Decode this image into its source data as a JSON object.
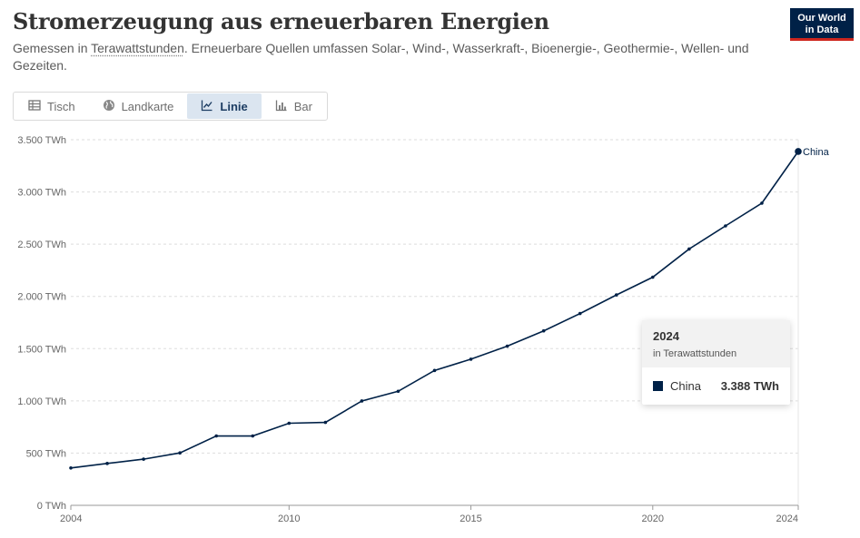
{
  "header": {
    "title": "Stromerzeugung aus erneuerbaren Energien",
    "subtitle_prefix": "Gemessen in ",
    "subtitle_link": "Terawattstunden",
    "subtitle_rest": ". Erneuerbare Quellen umfassen Solar-, Wind-, Wasserkraft-, Bioenergie-, Geothermie-, Wellen- und Gezeiten."
  },
  "logo": {
    "line1": "Our World",
    "line2": "in Data"
  },
  "tabs": [
    {
      "label": "Tisch",
      "icon": "table-icon",
      "active": false
    },
    {
      "label": "Landkarte",
      "icon": "globe-icon",
      "active": false
    },
    {
      "label": "Linie",
      "icon": "line-chart-icon",
      "active": true
    },
    {
      "label": "Bar",
      "icon": "bar-chart-icon",
      "active": false
    }
  ],
  "tooltip": {
    "year": "2024",
    "unit": "in Terawattstunden",
    "series": "China",
    "value": "3.388 TWh"
  },
  "colors": {
    "series": "#002147",
    "accent": "#ce261e",
    "active_tab": "#dbe5f0"
  },
  "chart_data": {
    "type": "line",
    "title": "Stromerzeugung aus erneuerbaren Energien",
    "xlim": [
      2004,
      2024
    ],
    "ylim": [
      0,
      3500
    ],
    "x_ticks": [
      2004,
      2010,
      2015,
      2020,
      2024
    ],
    "y_ticks": [
      0,
      500,
      1000,
      1500,
      2000,
      2500,
      3000,
      3500
    ],
    "y_tick_labels": [
      "0 TWh",
      "500 TWh",
      "1.000 TWh",
      "1.500 TWh",
      "2.000 TWh",
      "2.500 TWh",
      "3.000 TWh",
      "3.500 TWh"
    ],
    "grid": true,
    "series": [
      {
        "name": "China",
        "x": [
          2004,
          2005,
          2006,
          2007,
          2008,
          2009,
          2010,
          2011,
          2012,
          2013,
          2014,
          2015,
          2016,
          2017,
          2018,
          2019,
          2020,
          2021,
          2022,
          2023,
          2024
        ],
        "values": [
          358,
          401,
          442,
          502,
          664,
          664,
          786,
          794,
          999,
          1092,
          1291,
          1399,
          1524,
          1670,
          1836,
          2014,
          2184,
          2454,
          2675,
          2893,
          3388
        ]
      }
    ]
  }
}
